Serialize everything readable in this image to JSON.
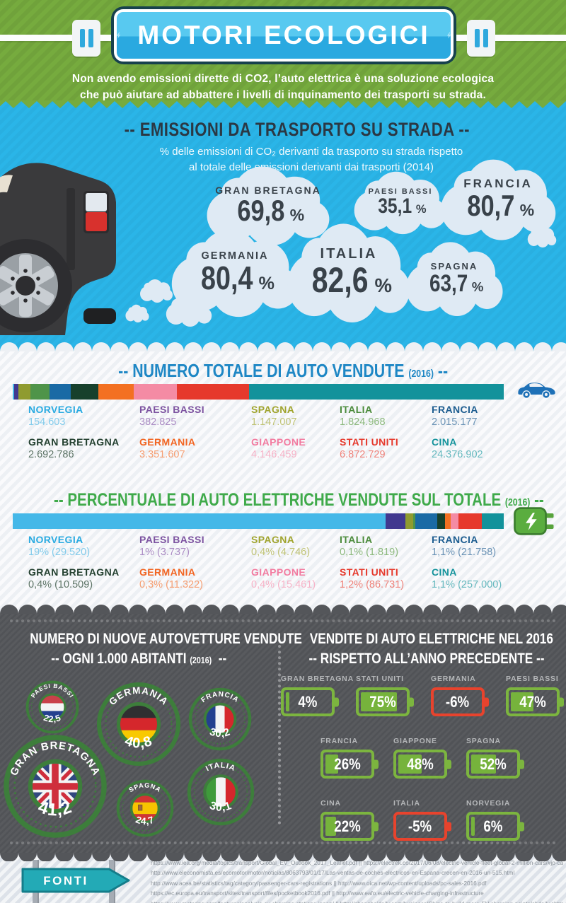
{
  "header": {
    "title": "MOTORI ECOLOGICI",
    "description_line1": "Non avendo emissioni dirette di CO2, l’auto elettrica è una soluzione ecologica",
    "description_line2": "che può aiutare ad abbattere i livelli di inquinamento dei trasporti su strada."
  },
  "emissions": {
    "title": "-- EMISSIONI DA TRASPORTO SU STRADA --",
    "subtitle_line1": "% delle emissioni di CO₂ derivanti da trasporto su strada rispetto",
    "subtitle_line2": "al totale delle emissioni derivanti dai trasporti (2014)",
    "clouds": [
      {
        "country": "GRAN BRETAGNA",
        "value": "69,8",
        "unit": "%"
      },
      {
        "country": "PAESI BASSI",
        "value": "35,1",
        "unit": "%"
      },
      {
        "country": "FRANCIA",
        "value": "80,7",
        "unit": "%"
      },
      {
        "country": "GERMANIA",
        "value": "80,4",
        "unit": "%"
      },
      {
        "country": "ITALIA",
        "value": "82,6",
        "unit": "%"
      },
      {
        "country": "SPAGNA",
        "value": "63,7",
        "unit": "%"
      }
    ]
  },
  "total_sales": {
    "lead": "-- NUMERO TOTALE DI AUTO VENDUTE",
    "year": "(2016)",
    "tail": "--"
  },
  "ev_share": {
    "lead": "-- PERCENTUALE DI AUTO ELETTRICHE VENDUTE SUL TOTALE",
    "year": "(2016)",
    "tail": "--"
  },
  "countries": [
    {
      "name": "NORVEGIA",
      "color": "#29aae1",
      "light": "#82cbeb",
      "bar": "#45b8e8",
      "sales": "154.603",
      "sales_n": 154603,
      "ev": "19% (29.520)",
      "ev_n": 19
    },
    {
      "name": "PAESI BASSI",
      "color": "#7c52a0",
      "light": "#ab8cc4",
      "bar": "#41388f",
      "sales": "382.825",
      "sales_n": 382825,
      "ev": "1% (3.737)",
      "ev_n": 1
    },
    {
      "name": "SPAGNA",
      "color": "#a0a42e",
      "light": "#c0c376",
      "bar": "#8f9b30",
      "sales": "1.147.007",
      "sales_n": 1147007,
      "ev": "0,4% (4.746)",
      "ev_n": 0.4
    },
    {
      "name": "ITALIA",
      "color": "#4b8b3b",
      "light": "#8db97e",
      "bar": "#4f9449",
      "sales": "1.824.968",
      "sales_n": 1824968,
      "ev": "0,1% (1.819)",
      "ev_n": 0.1
    },
    {
      "name": "FRANCIA",
      "color": "#1d5d90",
      "light": "#6b93b6",
      "bar": "#1a6aa5",
      "sales": "2.015.177",
      "sales_n": 2015177,
      "ev": "1,1% (21.758)",
      "ev_n": 1.1
    },
    {
      "name": "GRAN BRETAGNA",
      "color": "#23402f",
      "light": "#5e7567",
      "bar": "#17402c",
      "sales": "2.692.786",
      "sales_n": 2692786,
      "ev": "0,4% (10.509)",
      "ev_n": 0.4
    },
    {
      "name": "GERMANIA",
      "color": "#f26522",
      "light": "#f69e72",
      "bar": "#f37021",
      "sales": "3.351.607",
      "sales_n": 3351607,
      "ev": "0,3% (11.322)",
      "ev_n": 0.3
    },
    {
      "name": "GIAPPONE",
      "color": "#f27ba0",
      "light": "#f7b3c8",
      "bar": "#f48ba4",
      "sales": "4.146.459",
      "sales_n": 4146459,
      "ev": "0,4% (15.461)",
      "ev_n": 0.4
    },
    {
      "name": "STATI UNITI",
      "color": "#e6392c",
      "light": "#ef837b",
      "bar": "#e6392c",
      "sales": "6.872.729",
      "sales_n": 6872729,
      "ev": "1,2% (86.731)",
      "ev_n": 1.2
    },
    {
      "name": "CINA",
      "color": "#13929b",
      "light": "#66b9bf",
      "bar": "#13929b",
      "sales": "24.376.902",
      "sales_n": 24376902,
      "ev": "1,1% (257.000)",
      "ev_n": 1.1
    }
  ],
  "per_capita": {
    "title_line1": "NUMERO DI NUOVE AUTOVETTURE VENDUTE",
    "title_line2_lead": "--  OGNI 1.000 ABITANTI",
    "title_year": "(2016)",
    "title_tail": "--",
    "items": [
      {
        "code": "nl",
        "country": "PAESI BASSI",
        "value": "22,5"
      },
      {
        "code": "de",
        "country": "GERMANIA",
        "value": "40,8"
      },
      {
        "code": "fr",
        "country": "FRANCIA",
        "value": "30,2"
      },
      {
        "code": "gb",
        "country": "GRAN BRETAGNA",
        "value": "41,2"
      },
      {
        "code": "es",
        "country": "SPAGNA",
        "value": "24,7"
      },
      {
        "code": "it",
        "country": "ITALIA",
        "value": "30,1"
      }
    ]
  },
  "growth": {
    "title_line1": "VENDITE DI AUTO ELETTRICHE NEL 2016",
    "title_line2": "-- RISPETTO ALL’ANNO PRECEDENTE --",
    "rows": [
      [
        {
          "country": "GRAN BRETAGNA",
          "value": "4%",
          "n": 4
        },
        {
          "country": "STATI UNITI",
          "value": "75%",
          "n": 75
        },
        {
          "country": "GERMANIA",
          "value": "-6%",
          "n": -6
        },
        {
          "country": "PAESI BASSI",
          "value": "47%",
          "n": 47
        }
      ],
      [
        {
          "country": "FRANCIA",
          "value": "26%",
          "n": 26
        },
        {
          "country": "GIAPPONE",
          "value": "48%",
          "n": 48
        },
        {
          "country": "SPAGNA",
          "value": "52%",
          "n": 52
        }
      ],
      [
        {
          "country": "CINA",
          "value": "22%",
          "n": 22
        },
        {
          "country": "ITALIA",
          "value": "-5%",
          "n": -5
        },
        {
          "country": "NORVEGIA",
          "value": "6%",
          "n": 6
        }
      ]
    ]
  },
  "fonti": {
    "label": "FONTI",
    "lines": [
      "https://www.iea.org/media/topics/transport/Global_EV_Outlook_2017_Leaflet.pdf  ||  https://electrek.co/2017/06/08/electric-vehicle-fleet-global-2-million-cars/#jp-carousel-45571",
      "http://www.eleconomista.es/ecomotor/motor/noticias/8063793/01/17/Las-ventas-de-coches-electricos-en-Espana-crecen-en-2016-un-515.html",
      "http://www.acea.be/statistics/tag/category/passenger-cars-registrations  ||  http://www.oica.net/wp-content/uploads/pc-sales-2016.pdf",
      "https://ec.europa.eu/transport/sites/transport/files/pocketbook2016.pdf || http://www.eafo.eu/electric-vehicle-charging-infrastructure",
      "https://www.metering.com/features/analysis-ev-charging-stations-japan/  ||  http://shanghaidaily.com/business/China-to-build-more-EV-charging-points/shdaily.shtml"
    ]
  },
  "chart_data": [
    {
      "type": "bar",
      "title": "Emissioni da trasporto su strada: % delle emissioni di CO2 derivanti da trasporto su strada rispetto al totale delle emissioni derivanti dai trasporti (2014)",
      "categories": [
        "GRAN BRETAGNA",
        "PAESI BASSI",
        "FRANCIA",
        "GERMANIA",
        "ITALIA",
        "SPAGNA"
      ],
      "values": [
        69.8,
        35.1,
        80.7,
        80.4,
        82.6,
        63.7
      ],
      "unit": "%"
    },
    {
      "type": "bar",
      "title": "Numero totale di auto vendute (2016)",
      "categories": [
        "NORVEGIA",
        "PAESI BASSI",
        "SPAGNA",
        "ITALIA",
        "FRANCIA",
        "GRAN BRETAGNA",
        "GERMANIA",
        "GIAPPONE",
        "STATI UNITI",
        "CINA"
      ],
      "values": [
        154603,
        382825,
        1147007,
        1824968,
        2015177,
        2692786,
        3351607,
        4146459,
        6872729,
        24376902
      ]
    },
    {
      "type": "bar",
      "title": "Percentuale di auto elettriche vendute sul totale (2016)",
      "categories": [
        "NORVEGIA",
        "PAESI BASSI",
        "SPAGNA",
        "ITALIA",
        "FRANCIA",
        "GRAN BRETAGNA",
        "GERMANIA",
        "GIAPPONE",
        "STATI UNITI",
        "CINA"
      ],
      "values": [
        19,
        1,
        0.4,
        0.1,
        1.1,
        0.4,
        0.3,
        0.4,
        1.2,
        1.1
      ],
      "annotations": [
        "29.520",
        "3.737",
        "4.746",
        "1.819",
        "21.758",
        "10.509",
        "11.322",
        "15.461",
        "86.731",
        "257.000"
      ],
      "unit": "%"
    },
    {
      "type": "bar",
      "title": "Numero di nuove autovetture vendute ogni 1.000 abitanti (2016)",
      "categories": [
        "PAESI BASSI",
        "GERMANIA",
        "FRANCIA",
        "GRAN BRETAGNA",
        "SPAGNA",
        "ITALIA"
      ],
      "values": [
        22.5,
        40.8,
        30.2,
        41.2,
        24.7,
        30.1
      ]
    },
    {
      "type": "bar",
      "title": "Vendite di auto elettriche nel 2016 rispetto all'anno precedente",
      "categories": [
        "GRAN BRETAGNA",
        "STATI UNITI",
        "GERMANIA",
        "PAESI BASSI",
        "FRANCIA",
        "GIAPPONE",
        "SPAGNA",
        "CINA",
        "ITALIA",
        "NORVEGIA"
      ],
      "values": [
        4,
        75,
        -6,
        47,
        26,
        48,
        52,
        22,
        -5,
        6
      ],
      "unit": "%"
    }
  ]
}
